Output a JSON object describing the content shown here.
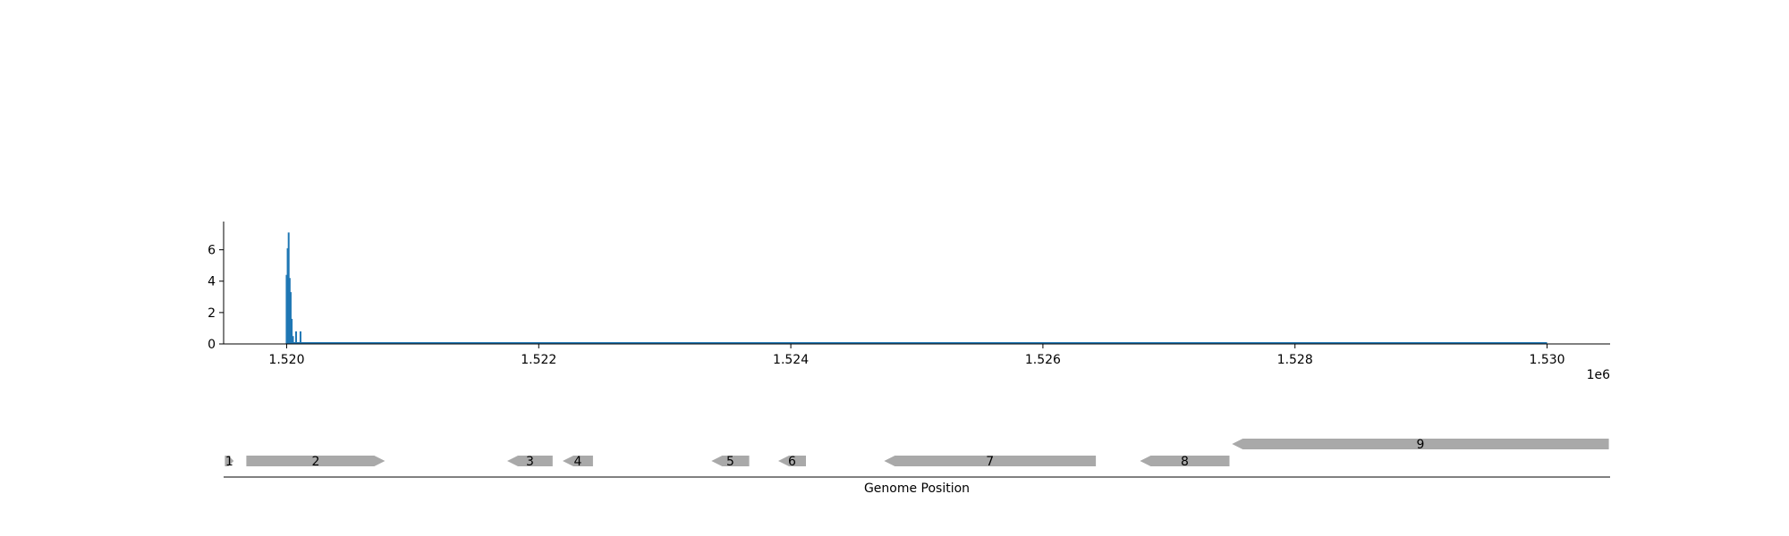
{
  "chart_data": [
    {
      "type": "bar",
      "title": "",
      "xlabel": "",
      "ylabel": "",
      "x_offset_label": "1e6",
      "xlim": [
        1519500,
        1530500
      ],
      "ylim": [
        0,
        7.8
      ],
      "xticks": [
        {
          "value": 1520000,
          "label": "1.520"
        },
        {
          "value": 1522000,
          "label": "1.522"
        },
        {
          "value": 1524000,
          "label": "1.524"
        },
        {
          "value": 1526000,
          "label": "1.526"
        },
        {
          "value": 1528000,
          "label": "1.528"
        },
        {
          "value": 1530000,
          "label": "1.530"
        }
      ],
      "yticks": [
        {
          "value": 0,
          "label": "0"
        },
        {
          "value": 2,
          "label": "2"
        },
        {
          "value": 4,
          "label": "4"
        },
        {
          "value": 6,
          "label": "6"
        }
      ],
      "baseline_range": [
        1520000,
        1530000
      ],
      "bars": [
        {
          "x": 1520000,
          "y": 4.4
        },
        {
          "x": 1520008,
          "y": 6.1
        },
        {
          "x": 1520016,
          "y": 7.1
        },
        {
          "x": 1520024,
          "y": 4.2
        },
        {
          "x": 1520032,
          "y": 3.3
        },
        {
          "x": 1520040,
          "y": 1.6
        },
        {
          "x": 1520050,
          "y": 0.5
        },
        {
          "x": 1520075,
          "y": 0.8
        },
        {
          "x": 1520110,
          "y": 0.8
        }
      ],
      "color": "#1f77b4",
      "grid": false
    },
    {
      "type": "gene_track",
      "xlabel": "Genome Position",
      "xlim": [
        1519500,
        1530500
      ],
      "color": "#a9a9a9",
      "genes": [
        {
          "label": "1",
          "start": 1519510,
          "end": 1519580,
          "strand": "+",
          "row": 0
        },
        {
          "label": "2",
          "start": 1519680,
          "end": 1520780,
          "strand": "+",
          "row": 0
        },
        {
          "label": "3",
          "start": 1521750,
          "end": 1522110,
          "strand": "-",
          "row": 0
        },
        {
          "label": "4",
          "start": 1522190,
          "end": 1522430,
          "strand": "-",
          "row": 0
        },
        {
          "label": "5",
          "start": 1523370,
          "end": 1523670,
          "strand": "-",
          "row": 0
        },
        {
          "label": "6",
          "start": 1523900,
          "end": 1524120,
          "strand": "-",
          "row": 0
        },
        {
          "label": "7",
          "start": 1524740,
          "end": 1526420,
          "strand": "-",
          "row": 0
        },
        {
          "label": "8",
          "start": 1526770,
          "end": 1527480,
          "strand": "-",
          "row": 0
        },
        {
          "label": "9",
          "start": 1527500,
          "end": 1530490,
          "strand": "-",
          "row": 1
        }
      ]
    }
  ]
}
